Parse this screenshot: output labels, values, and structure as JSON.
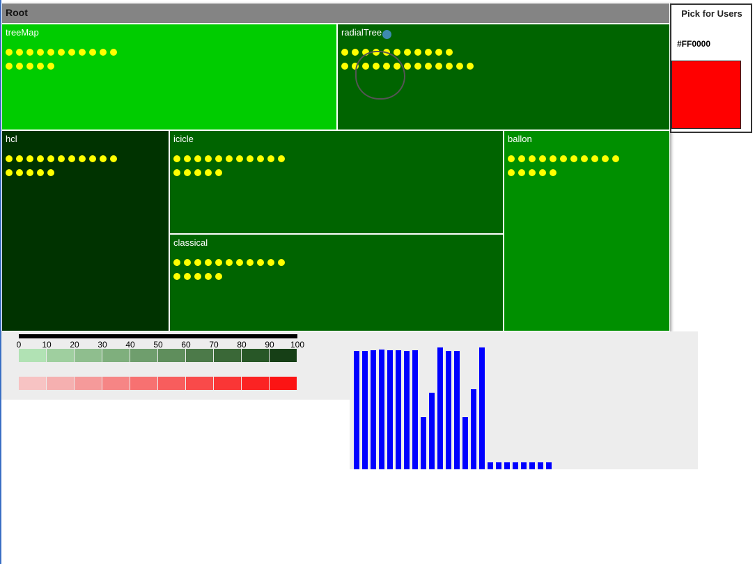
{
  "treemap": {
    "root_label": "Root",
    "nodes": [
      {
        "label": "treeMap",
        "color": "#00cc00",
        "dot_rows": [
          11,
          5
        ]
      },
      {
        "label": "radialTree",
        "color": "#006400",
        "dot_rows": [
          11,
          13
        ]
      },
      {
        "label": "hcl",
        "color": "#003300",
        "dot_rows": [
          11,
          5
        ]
      },
      {
        "label": "icicle",
        "color": "#006400",
        "dot_rows": [
          11,
          5
        ]
      },
      {
        "label": "classical",
        "color": "#006400",
        "dot_rows": [
          11,
          5
        ]
      },
      {
        "label": "ballon",
        "color": "#008f00",
        "dot_rows": [
          11,
          5
        ]
      }
    ],
    "dot_color": "#ffff00"
  },
  "pick_panel": {
    "title": "Pick for Users",
    "hex_value": "#FF0000",
    "swatch_color": "#ff0000"
  },
  "legend": {
    "ticks": [
      "0",
      "10",
      "20",
      "30",
      "40",
      "50",
      "60",
      "70",
      "80",
      "90",
      "100"
    ],
    "green_scale": [
      "#b1e2b4",
      "#9fcf9f",
      "#8fbe8e",
      "#7faf7d",
      "#6f9e6d",
      "#5f8e5c",
      "#4c7a49",
      "#3a6837",
      "#285727",
      "#163f16"
    ],
    "red_scale": [
      "#f7c3c3",
      "#f5b0b0",
      "#f59a9a",
      "#f68585",
      "#f77171",
      "#f85d5d",
      "#f94a4a",
      "#fa3636",
      "#fb2323",
      "#fc1414"
    ]
  },
  "histogram": {
    "bar_color": "#0000ff",
    "values": [
      170,
      170,
      171,
      172,
      171,
      171,
      170,
      171,
      75,
      110,
      175,
      170,
      170,
      75,
      115,
      175,
      10,
      10,
      10,
      10,
      10,
      10,
      10,
      10
    ]
  }
}
